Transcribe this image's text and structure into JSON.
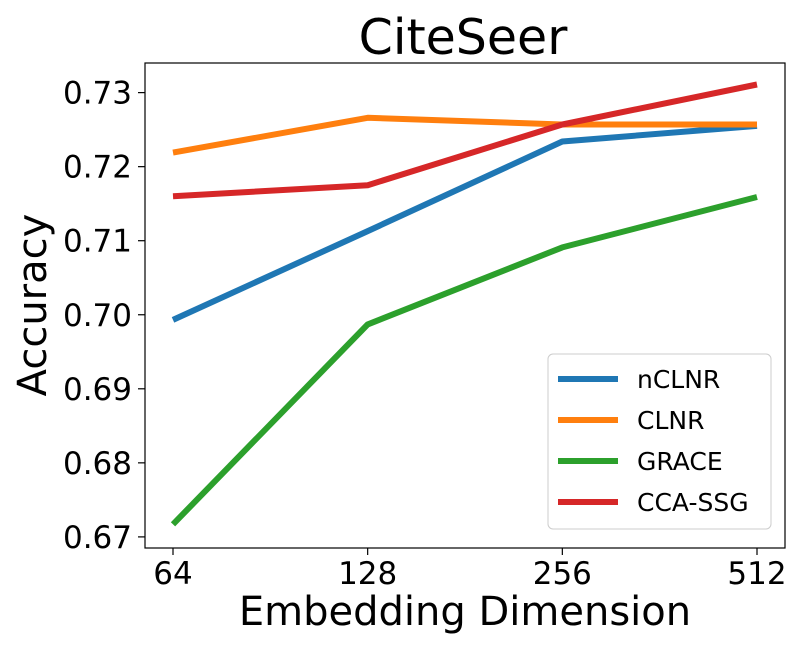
{
  "chart_data": {
    "type": "line",
    "title": "CiteSeer",
    "xlabel": "Embedding Dimension",
    "ylabel": "Accuracy",
    "categories": [
      "64",
      "128",
      "256",
      "512"
    ],
    "ylim": [
      0.6685,
      0.734
    ],
    "yticks": [
      0.67,
      0.68,
      0.69,
      0.7,
      0.71,
      0.72,
      0.73
    ],
    "ytick_labels": [
      "0.67",
      "0.68",
      "0.69",
      "0.70",
      "0.71",
      "0.72",
      "0.73"
    ],
    "grid": false,
    "legend_position": "lower-right",
    "series": [
      {
        "name": "nCLNR",
        "color": "#1f77b4",
        "values": [
          0.6993,
          0.7113,
          0.7234,
          0.7255
        ]
      },
      {
        "name": "CLNR",
        "color": "#ff7f0e",
        "values": [
          0.7219,
          0.7266,
          0.7257,
          0.7257
        ]
      },
      {
        "name": "GRACE",
        "color": "#2ca02c",
        "values": [
          0.6717,
          0.6987,
          0.7091,
          0.7159
        ]
      },
      {
        "name": "CCA-SSG",
        "color": "#d62728",
        "values": [
          0.716,
          0.7175,
          0.7257,
          0.7311
        ]
      }
    ]
  }
}
